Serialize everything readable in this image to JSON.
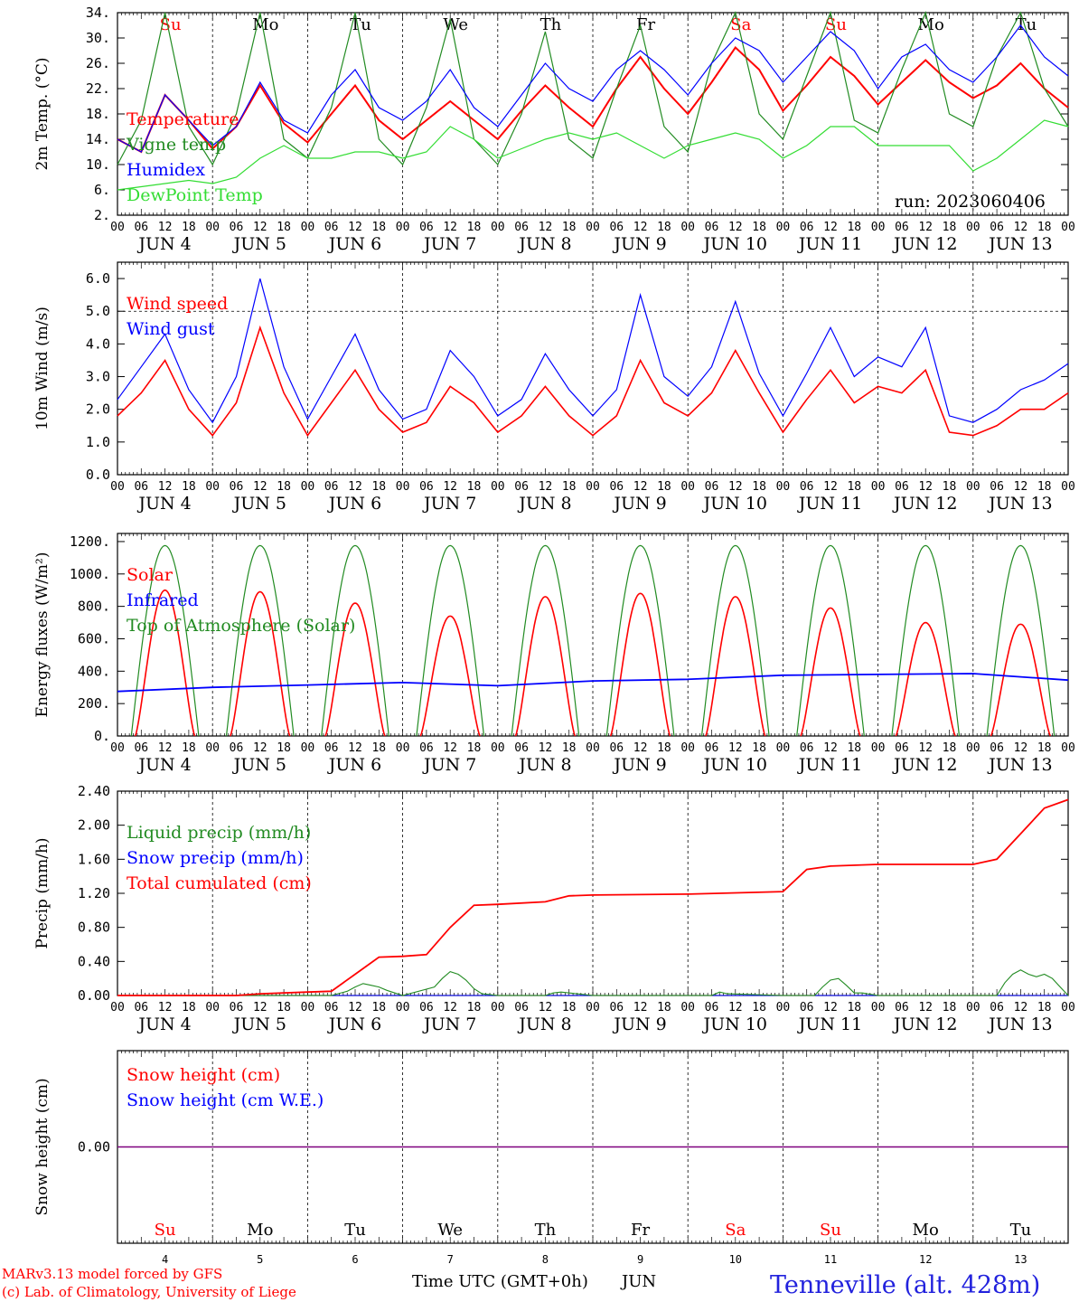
{
  "footer": {
    "credit_line1": "MARv3.13 model forced by GFS",
    "credit_line2": "(c) Lab. of Climatology, University of Liege",
    "xaxis_title": "Time UTC (GMT+0h)",
    "month": "JUN",
    "location": "Tenneville (alt. 428m)",
    "credit_color": "#ff0000",
    "location_color": "#2222dd"
  },
  "run_label": "run: 2023060406",
  "hour_ticks": [
    "00",
    "06",
    "12",
    "18"
  ],
  "end_hour": "00",
  "date_labels": [
    "JUN  4",
    "JUN  5",
    "JUN  6",
    "JUN  7",
    "JUN  8",
    "JUN  9",
    "JUN 10",
    "JUN 11",
    "JUN 12",
    "JUN 13"
  ],
  "bottom_day_numbers": [
    "4",
    "5",
    "6",
    "7",
    "8",
    "9",
    "10",
    "11",
    "12",
    "13"
  ],
  "weekdays": [
    "Su",
    "Mo",
    "Tu",
    "We",
    "Th",
    "Fr",
    "Sa",
    "Su",
    "Mo",
    "Tu"
  ],
  "weekend_flags": [
    true,
    false,
    false,
    false,
    false,
    false,
    true,
    true,
    false,
    false
  ],
  "colors": {
    "red": "#ff0000",
    "green": "#228b22",
    "blue": "#0000ff",
    "lightgreen": "#33dd33",
    "purple": "#7f007f",
    "weekend": "#ff0000",
    "weekday": "#000000"
  },
  "chart_data": [
    {
      "type": "line",
      "ylabel": "2m Temp. (°C)",
      "ylim": [
        2,
        34
      ],
      "yticks": [
        "34.",
        "30.",
        "26.",
        "22.",
        "18.",
        "14.",
        "10.",
        "6.",
        "2."
      ],
      "ytick_values": [
        34,
        30,
        26,
        22,
        18,
        14,
        10,
        6,
        2
      ],
      "x_unit": "hours since Jun 4 00 UTC",
      "xlim": [
        0,
        240
      ],
      "series": [
        {
          "name": "Temperature",
          "color": "red",
          "x": [
            0,
            6,
            12,
            18,
            24,
            30,
            36,
            42,
            48,
            54,
            60,
            66,
            72,
            78,
            84,
            90,
            96,
            102,
            108,
            114,
            120,
            126,
            132,
            138,
            144,
            150,
            156,
            162,
            168,
            174,
            180,
            186,
            192,
            198,
            204,
            210,
            216,
            222,
            228,
            234,
            240
          ],
          "y": [
            14,
            12,
            21,
            17,
            12.5,
            16,
            22.5,
            16.5,
            13.5,
            18,
            22.5,
            17,
            14,
            17,
            20,
            17,
            14,
            18.5,
            22.5,
            19,
            16,
            22,
            27,
            22,
            18,
            23,
            28.5,
            25,
            18.5,
            22.5,
            27,
            24,
            19.5,
            23,
            26.5,
            23,
            20.5,
            22.5,
            26,
            22,
            19
          ]
        },
        {
          "name": "Vigne temp",
          "color": "green",
          "x": [
            0,
            6,
            12,
            18,
            24,
            30,
            36,
            42,
            48,
            54,
            60,
            66,
            72,
            78,
            84,
            90,
            96,
            102,
            108,
            114,
            120,
            126,
            132,
            138,
            144,
            150,
            156,
            162,
            168,
            174,
            180,
            186,
            192,
            198,
            204,
            210,
            216,
            222,
            228,
            234,
            240
          ],
          "y": [
            10,
            17,
            34,
            16,
            10,
            18,
            34,
            14,
            11,
            19,
            34,
            14,
            10,
            19,
            33,
            14,
            10,
            18,
            31,
            14,
            11,
            22,
            32,
            16,
            12,
            26,
            34,
            18,
            14,
            24,
            34,
            17,
            15,
            25,
            34,
            18,
            16,
            27,
            34,
            22,
            16
          ]
        },
        {
          "name": "Humidex",
          "color": "blue",
          "x": [
            0,
            6,
            12,
            18,
            24,
            30,
            36,
            42,
            48,
            54,
            60,
            66,
            72,
            78,
            84,
            90,
            96,
            102,
            108,
            114,
            120,
            126,
            132,
            138,
            144,
            150,
            156,
            162,
            168,
            174,
            180,
            186,
            192,
            198,
            204,
            210,
            216,
            222,
            228,
            234,
            240
          ],
          "y": [
            14,
            12,
            21,
            17,
            13,
            16,
            23,
            17,
            15,
            21,
            25,
            19,
            17,
            20,
            25,
            19,
            16,
            21,
            26,
            22,
            20,
            25,
            28,
            25,
            21,
            26,
            30,
            28,
            23,
            27,
            31,
            28,
            22,
            27,
            29,
            25,
            23,
            27,
            32,
            27,
            24
          ]
        },
        {
          "name": "DewPoint Temp",
          "color": "lightgreen",
          "x": [
            0,
            6,
            12,
            18,
            24,
            30,
            36,
            42,
            48,
            54,
            60,
            66,
            72,
            78,
            84,
            90,
            96,
            102,
            108,
            114,
            120,
            126,
            132,
            138,
            144,
            150,
            156,
            162,
            168,
            174,
            180,
            186,
            192,
            198,
            204,
            210,
            216,
            222,
            228,
            234,
            240
          ],
          "y": [
            6,
            6.5,
            7,
            7.5,
            7,
            8,
            11,
            13,
            11,
            11,
            12,
            12,
            11,
            12,
            16,
            14,
            11,
            12.5,
            14,
            15,
            14,
            15,
            13,
            11,
            13,
            14,
            15,
            14,
            11,
            13,
            16,
            16,
            13,
            13,
            13,
            13,
            9,
            11,
            14,
            17,
            16
          ]
        }
      ],
      "legend": [
        "Temperature",
        "Vigne temp",
        "Humidex",
        "DewPoint Temp"
      ]
    },
    {
      "type": "line",
      "ylabel": "10m Wind (m/s)",
      "ylim": [
        0,
        6.5
      ],
      "yticks": [
        "6.0",
        "5.0",
        "4.0",
        "3.0",
        "2.0",
        "1.0",
        "0.0"
      ],
      "ytick_values": [
        6,
        5,
        4,
        3,
        2,
        1,
        0
      ],
      "reference_line": 5,
      "series": [
        {
          "name": "Wind speed",
          "color": "red",
          "x": [
            0,
            6,
            12,
            18,
            24,
            30,
            36,
            42,
            48,
            54,
            60,
            66,
            72,
            78,
            84,
            90,
            96,
            102,
            108,
            114,
            120,
            126,
            132,
            138,
            144,
            150,
            156,
            162,
            168,
            174,
            180,
            186,
            192,
            198,
            204,
            210,
            216,
            222,
            228,
            234,
            240
          ],
          "y": [
            1.8,
            2.5,
            3.5,
            2,
            1.2,
            2.2,
            4.5,
            2.5,
            1.2,
            2.2,
            3.2,
            2,
            1.3,
            1.6,
            2.7,
            2.2,
            1.3,
            1.8,
            2.7,
            1.8,
            1.2,
            1.8,
            3.5,
            2.2,
            1.8,
            2.5,
            3.8,
            2.5,
            1.3,
            2.3,
            3.2,
            2.2,
            2.7,
            2.5,
            3.2,
            1.3,
            1.2,
            1.5,
            2,
            2,
            2.5
          ]
        },
        {
          "name": "Wind gust",
          "color": "blue",
          "x": [
            0,
            6,
            12,
            18,
            24,
            30,
            36,
            42,
            48,
            54,
            60,
            66,
            72,
            78,
            84,
            90,
            96,
            102,
            108,
            114,
            120,
            126,
            132,
            138,
            144,
            150,
            156,
            162,
            168,
            174,
            180,
            186,
            192,
            198,
            204,
            210,
            216,
            222,
            228,
            234,
            240
          ],
          "y": [
            2.3,
            3.3,
            4.3,
            2.6,
            1.6,
            3,
            6,
            3.3,
            1.7,
            3,
            4.3,
            2.6,
            1.7,
            2,
            3.8,
            3,
            1.8,
            2.3,
            3.7,
            2.6,
            1.8,
            2.6,
            5.5,
            3,
            2.4,
            3.3,
            5.3,
            3.1,
            1.8,
            3.1,
            4.5,
            3,
            3.6,
            3.3,
            4.5,
            1.8,
            1.6,
            2,
            2.6,
            2.9,
            3.4
          ]
        }
      ],
      "legend": [
        "Wind speed",
        "Wind gust"
      ]
    },
    {
      "type": "line",
      "ylabel": "Energy fluxes (W/m²)",
      "ylim": [
        0,
        1250
      ],
      "yticks": [
        "1200.",
        "1000.",
        "800.",
        "600.",
        "400.",
        "200.",
        "0."
      ],
      "ytick_values": [
        1200,
        1000,
        800,
        600,
        400,
        200,
        0
      ],
      "solar_peaks": [
        900,
        890,
        820,
        740,
        860,
        880,
        860,
        790,
        700,
        690
      ],
      "toa_peak": 1175,
      "infrared": {
        "x": [
          0,
          24,
          48,
          72,
          96,
          120,
          144,
          168,
          192,
          216,
          240
        ],
        "y": [
          275,
          300,
          315,
          330,
          310,
          340,
          350,
          375,
          380,
          385,
          345
        ]
      },
      "series_names": [
        "Solar",
        "Infrared",
        "Top of Atmosphere (Solar)"
      ],
      "legend": [
        "Solar",
        "Infrared",
        "Top of Atmosphere (Solar)"
      ]
    },
    {
      "type": "line",
      "ylabel": "Precip (mm/h)",
      "ylim": [
        0,
        2.4
      ],
      "yticks": [
        "2.40",
        "2.00",
        "1.60",
        "1.20",
        "0.80",
        "0.40",
        "0.00"
      ],
      "ytick_values": [
        2.4,
        2.0,
        1.6,
        1.2,
        0.8,
        0.4,
        0.0
      ],
      "series": [
        {
          "name": "Total cumulated (cm)",
          "color": "red",
          "x": [
            0,
            30,
            36,
            48,
            54,
            60,
            66,
            72,
            78,
            84,
            90,
            96,
            108,
            114,
            120,
            144,
            168,
            174,
            180,
            192,
            216,
            222,
            228,
            234,
            240
          ],
          "y": [
            0,
            0,
            0.02,
            0.04,
            0.05,
            0.25,
            0.45,
            0.46,
            0.48,
            0.8,
            1.06,
            1.07,
            1.1,
            1.17,
            1.18,
            1.19,
            1.22,
            1.48,
            1.52,
            1.54,
            1.54,
            1.6,
            1.9,
            2.2,
            2.3
          ]
        },
        {
          "name": "Liquid precip (mm/h)",
          "color": "green",
          "x": [
            0,
            54,
            58,
            60,
            62,
            64,
            66,
            68,
            72,
            80,
            82,
            84,
            86,
            88,
            90,
            92,
            96,
            108,
            110,
            112,
            114,
            116,
            120,
            150,
            152,
            154,
            168,
            176,
            178,
            180,
            182,
            184,
            186,
            188,
            192,
            222,
            224,
            226,
            228,
            230,
            232,
            234,
            236,
            238,
            240
          ],
          "y": [
            0,
            0,
            0.05,
            0.1,
            0.14,
            0.12,
            0.1,
            0.06,
            0,
            0.1,
            0.2,
            0.28,
            0.25,
            0.18,
            0.08,
            0.02,
            0,
            0,
            0.03,
            0.04,
            0.03,
            0.02,
            0,
            0,
            0.04,
            0.02,
            0,
            0,
            0.1,
            0.18,
            0.2,
            0.12,
            0.03,
            0.03,
            0,
            0,
            0.15,
            0.25,
            0.3,
            0.25,
            0.22,
            0.25,
            0.2,
            0.1,
            0
          ]
        },
        {
          "name": "Snow precip (mm/h)",
          "color": "blue",
          "x": [
            0,
            240
          ],
          "y": [
            0,
            0
          ]
        }
      ],
      "legend": [
        "Liquid precip (mm/h)",
        "Snow precip (mm/h)",
        "Total cumulated (cm)"
      ]
    },
    {
      "type": "line",
      "ylabel": "Snow height (cm)",
      "ytick": "0.00",
      "series": [
        {
          "name": "Snow height (cm)",
          "color": "red",
          "x": [
            0,
            240
          ],
          "y": [
            0,
            0
          ]
        },
        {
          "name": "Snow height (cm W.E.)",
          "color": "blue",
          "x": [
            0,
            240
          ],
          "y": [
            0,
            0
          ]
        }
      ],
      "legend": [
        "Snow height (cm)",
        "Snow height (cm W.E.)"
      ]
    }
  ]
}
